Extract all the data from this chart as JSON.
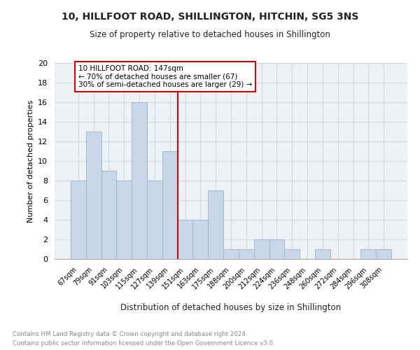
{
  "title1": "10, HILLFOOT ROAD, SHILLINGTON, HITCHIN, SG5 3NS",
  "title2": "Size of property relative to detached houses in Shillington",
  "xlabel": "Distribution of detached houses by size in Shillington",
  "ylabel": "Number of detached properties",
  "categories": [
    "67sqm",
    "79sqm",
    "91sqm",
    "103sqm",
    "115sqm",
    "127sqm",
    "139sqm",
    "151sqm",
    "163sqm",
    "175sqm",
    "188sqm",
    "200sqm",
    "212sqm",
    "224sqm",
    "236sqm",
    "248sqm",
    "260sqm",
    "272sqm",
    "284sqm",
    "296sqm",
    "308sqm"
  ],
  "values": [
    8,
    13,
    9,
    8,
    16,
    8,
    11,
    4,
    4,
    7,
    1,
    1,
    2,
    2,
    1,
    0,
    1,
    0,
    0,
    1,
    1
  ],
  "bar_color": "#c8d8e8",
  "bar_edge_color": "#a0b8cc",
  "vline_idx": 7,
  "vline_color": "#cc0000",
  "annotation_text": "10 HILLFOOT ROAD: 147sqm\n← 70% of detached houses are smaller (67)\n30% of semi-detached houses are larger (29) →",
  "annotation_box_color": "#ffffff",
  "annotation_box_edge": "#cc0000",
  "grid_color": "#d0d8e0",
  "background_color": "#eef2f7",
  "footer_line1": "Contains HM Land Registry data © Crown copyright and database right 2024.",
  "footer_line2": "Contains public sector information licensed under the Open Government Licence v3.0.",
  "ylim": [
    0,
    20
  ],
  "yticks": [
    0,
    2,
    4,
    6,
    8,
    10,
    12,
    14,
    16,
    18,
    20
  ]
}
